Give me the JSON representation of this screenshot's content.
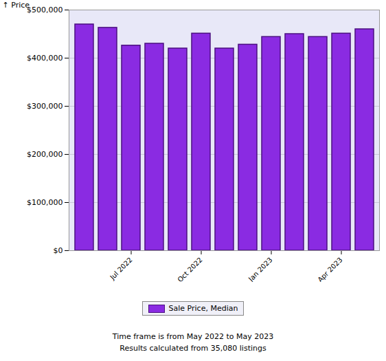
{
  "chart_data": {
    "type": "bar",
    "y_label": "Price",
    "categories": [
      null,
      null,
      "Jul 2022",
      null,
      null,
      "Oct 2022",
      null,
      null,
      "Jan 2023",
      null,
      null,
      "Apr 2023",
      null
    ],
    "series": [
      {
        "name": "Sale Price, Median",
        "color": "#8a2be2",
        "values": [
          470000,
          463000,
          426000,
          430000,
          420000,
          451000,
          420000,
          428000,
          444000,
          450000,
          444000,
          451000,
          460000
        ]
      }
    ],
    "ylim": [
      0,
      500000
    ],
    "yticks": [
      {
        "value": 0,
        "label": "$0"
      },
      {
        "value": 100000,
        "label": "$100,000"
      },
      {
        "value": 200000,
        "label": "$200,000"
      },
      {
        "value": 300000,
        "label": "$300,000"
      },
      {
        "value": 400000,
        "label": "$400,000"
      },
      {
        "value": 500000,
        "label": "$500,000"
      }
    ],
    "grid": true,
    "legend": "bottom",
    "annotations": [
      "Time frame is from May 2022 to May 2023",
      "Results calculated from 35,080 listings"
    ]
  }
}
